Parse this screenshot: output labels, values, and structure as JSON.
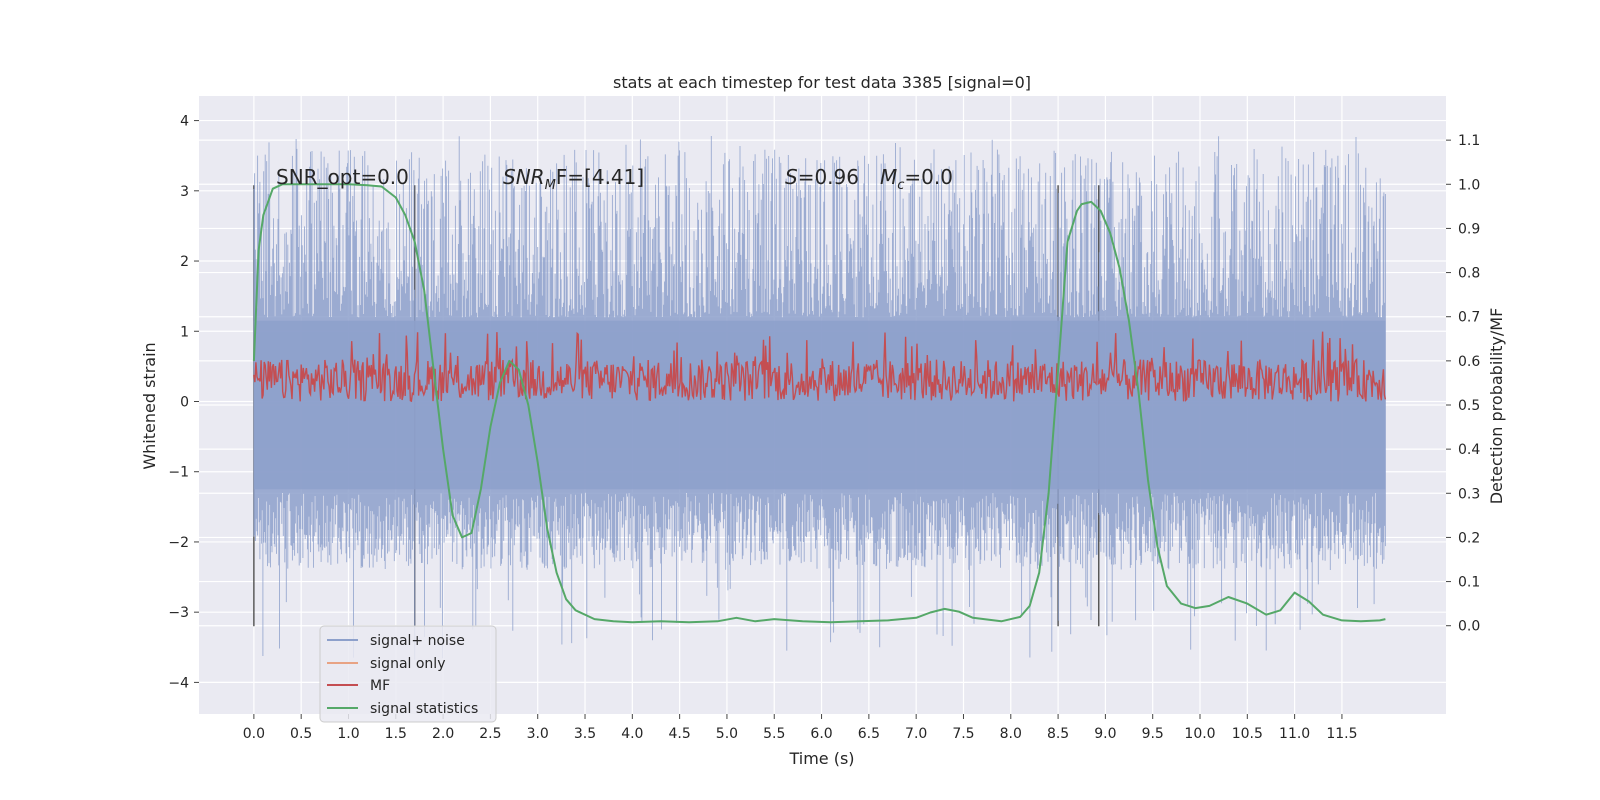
{
  "chart_data": {
    "type": "line",
    "title": "stats at each timestep for test data 3385 [signal=0]",
    "xlabel": "Time (s)",
    "ylabel": "Whitened strain",
    "ylabel_right": "Detection probability/MF",
    "xlim": [
      -0.58,
      12.6
    ],
    "ylim": [
      -4.45,
      4.35
    ],
    "ylim_right": [
      -0.2,
      1.2
    ],
    "x_ticks": [
      "0.0",
      "0.5",
      "1.0",
      "1.5",
      "2.0",
      "2.5",
      "3.0",
      "3.5",
      "4.0",
      "4.5",
      "5.0",
      "5.5",
      "6.0",
      "6.5",
      "7.0",
      "7.5",
      "8.0",
      "8.5",
      "9.0",
      "9.5",
      "10.0",
      "10.5",
      "11.0",
      "11.5"
    ],
    "y_ticks": [
      "4",
      "3",
      "2",
      "1",
      "0",
      "−1",
      "−2",
      "−3",
      "−4"
    ],
    "y_ticks_right": [
      "1.1",
      "1.0",
      "0.9",
      "0.8",
      "0.7",
      "0.6",
      "0.5",
      "0.4",
      "0.3",
      "0.2",
      "0.1",
      "0.0"
    ],
    "grid": true,
    "legend_placement": "lower-left",
    "annotations": [
      {
        "text": "SNR_opt=0.0"
      },
      {
        "text": "SNR",
        "sub": "M",
        "tail": "F=[4.41]"
      },
      {
        "text": "S",
        "tail": "=0.96"
      },
      {
        "text": "M",
        "sub": "c",
        "tail": "=0.0"
      }
    ],
    "vertical_markers": [
      0.0,
      1.7,
      8.5,
      8.93
    ],
    "series": [
      {
        "name": "signal+ noise",
        "color": "#8da0cb",
        "axis": "left",
        "time_range": [
          0.0,
          11.96
        ],
        "envelope_low": [
          -2.4,
          -1.3
        ],
        "envelope_high": [
          1.2,
          3.6
        ]
      },
      {
        "name": "signal only",
        "color": "#e8a384",
        "axis": "left",
        "values": []
      },
      {
        "name": "MF",
        "color": "#c44e52",
        "axis": "left",
        "time_range": [
          0.0,
          11.96
        ],
        "band": [
          0.0,
          0.6
        ],
        "peak": 1.0
      },
      {
        "name": "signal statistics",
        "color": "#55a868",
        "axis": "right",
        "x": [
          0.0,
          0.05,
          0.1,
          0.2,
          0.3,
          0.5,
          0.8,
          1.0,
          1.2,
          1.35,
          1.5,
          1.6,
          1.7,
          1.8,
          1.9,
          2.0,
          2.1,
          2.2,
          2.3,
          2.4,
          2.5,
          2.6,
          2.7,
          2.8,
          2.9,
          3.0,
          3.1,
          3.2,
          3.3,
          3.4,
          3.6,
          3.8,
          4.0,
          4.3,
          4.6,
          4.9,
          5.1,
          5.3,
          5.5,
          5.8,
          6.1,
          6.4,
          6.7,
          7.0,
          7.15,
          7.3,
          7.45,
          7.6,
          7.9,
          8.1,
          8.2,
          8.3,
          8.4,
          8.5,
          8.6,
          8.7,
          8.75,
          8.85,
          8.95,
          9.05,
          9.15,
          9.25,
          9.35,
          9.45,
          9.55,
          9.65,
          9.8,
          9.95,
          10.1,
          10.3,
          10.5,
          10.7,
          10.85,
          11.0,
          11.15,
          11.3,
          11.5,
          11.7,
          11.9,
          11.96
        ],
        "values": [
          0.6,
          0.85,
          0.93,
          0.99,
          1.0,
          1.0,
          1.0,
          1.0,
          0.998,
          0.995,
          0.97,
          0.93,
          0.87,
          0.76,
          0.58,
          0.4,
          0.25,
          0.2,
          0.21,
          0.31,
          0.45,
          0.55,
          0.6,
          0.58,
          0.5,
          0.37,
          0.22,
          0.12,
          0.06,
          0.035,
          0.015,
          0.01,
          0.008,
          0.01,
          0.008,
          0.01,
          0.018,
          0.01,
          0.015,
          0.01,
          0.008,
          0.01,
          0.012,
          0.018,
          0.03,
          0.038,
          0.032,
          0.018,
          0.01,
          0.02,
          0.045,
          0.12,
          0.3,
          0.58,
          0.87,
          0.94,
          0.955,
          0.96,
          0.94,
          0.89,
          0.81,
          0.69,
          0.53,
          0.33,
          0.18,
          0.09,
          0.05,
          0.04,
          0.045,
          0.065,
          0.05,
          0.025,
          0.035,
          0.075,
          0.055,
          0.025,
          0.012,
          0.01,
          0.012,
          0.015
        ]
      }
    ]
  }
}
